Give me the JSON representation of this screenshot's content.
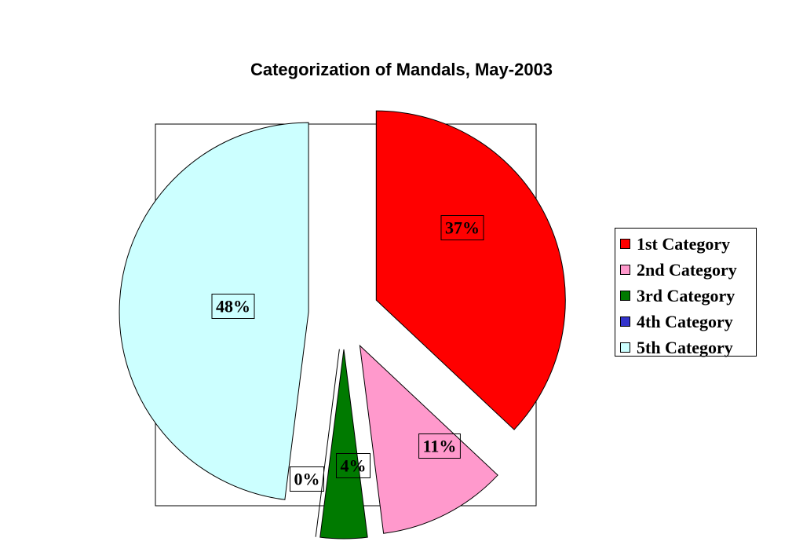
{
  "chart_data": {
    "type": "pie",
    "title": "Categorization of Mandals, May-2003",
    "categories": [
      "1st Category",
      "2nd Category",
      "3rd Category",
      "4th Category",
      "5th Category"
    ],
    "values": [
      37,
      11,
      4,
      0,
      48
    ],
    "data_labels": [
      "37%",
      "11%",
      "4%",
      "0%",
      "48%"
    ],
    "colors": [
      "#ff0000",
      "#ff99cc",
      "#007a00",
      "#3333cc",
      "#ccffff"
    ],
    "exploded": true,
    "legend_position": "right"
  }
}
